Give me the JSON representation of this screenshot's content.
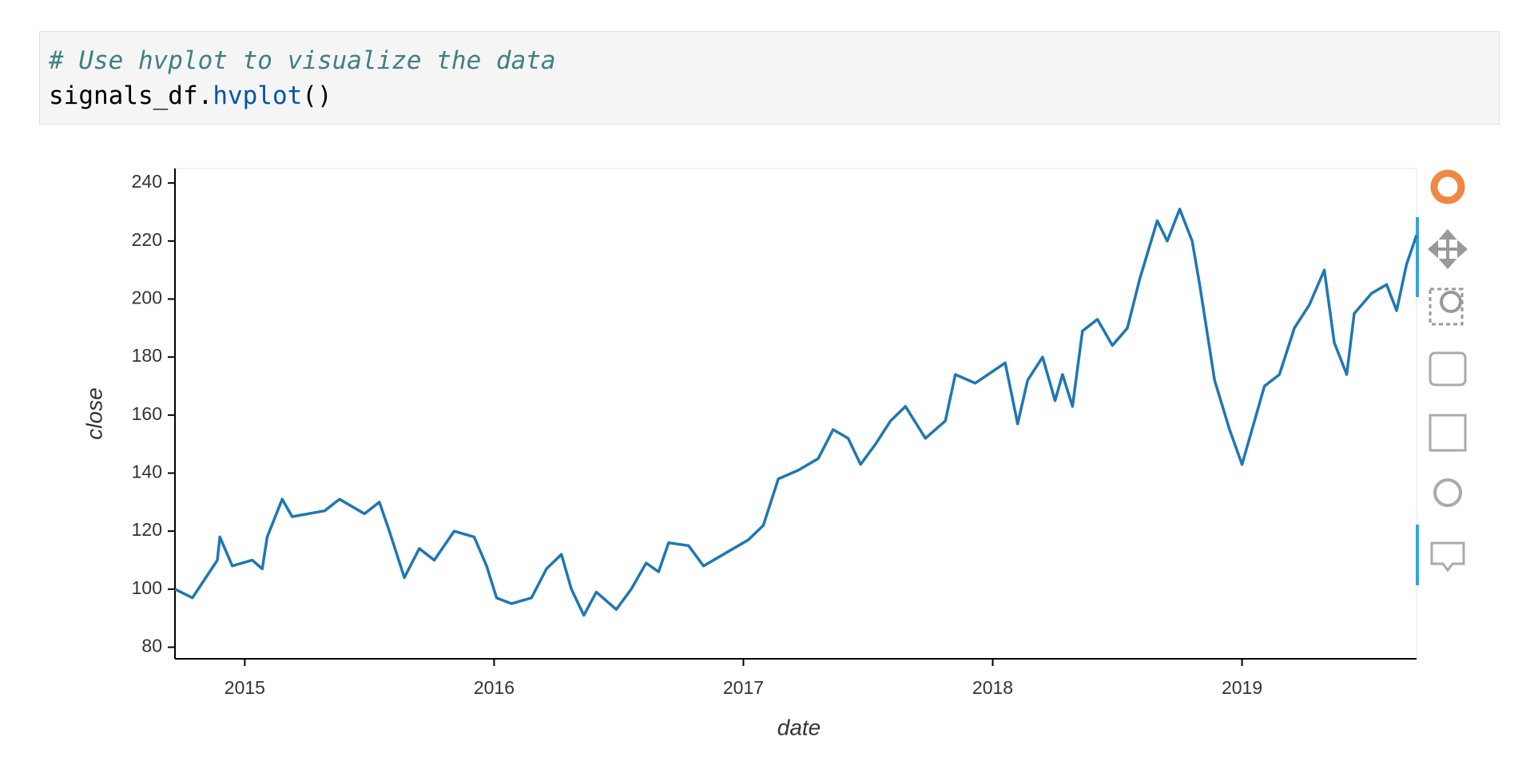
{
  "code_cell": {
    "lines": [
      [
        {
          "text": "# Use hvplot to visualize the data",
          "kind": "comment"
        }
      ],
      [
        {
          "text": "signals_df.",
          "kind": "plain"
        },
        {
          "text": "hvplot",
          "kind": "name"
        },
        {
          "text": "()",
          "kind": "plain"
        }
      ]
    ]
  },
  "chart_data": {
    "type": "line",
    "xlabel": "date",
    "ylabel": "close",
    "x": [
      2014.72,
      2014.79,
      2014.89,
      2014.9,
      2014.95,
      2015.03,
      2015.07,
      2015.09,
      2015.15,
      2015.19,
      2015.32,
      2015.38,
      2015.48,
      2015.54,
      2015.58,
      2015.64,
      2015.7,
      2015.76,
      2015.84,
      2015.92,
      2015.97,
      2016.01,
      2016.07,
      2016.15,
      2016.21,
      2016.27,
      2016.31,
      2016.36,
      2016.41,
      2016.49,
      2016.55,
      2016.61,
      2016.66,
      2016.7,
      2016.78,
      2016.84,
      2016.94,
      2017.02,
      2017.08,
      2017.14,
      2017.22,
      2017.3,
      2017.36,
      2017.42,
      2017.47,
      2017.53,
      2017.59,
      2017.65,
      2017.73,
      2017.81,
      2017.85,
      2017.93,
      2018.05,
      2018.1,
      2018.14,
      2018.2,
      2018.25,
      2018.28,
      2018.32,
      2018.36,
      2018.42,
      2018.48,
      2018.54,
      2018.59,
      2018.66,
      2018.7,
      2018.75,
      2018.8,
      2018.83,
      2018.89,
      2018.95,
      2019.0,
      2019.05,
      2019.09,
      2019.15,
      2019.21,
      2019.27,
      2019.33,
      2019.37,
      2019.42,
      2019.45,
      2019.52,
      2019.58,
      2019.62,
      2019.66,
      2019.7
    ],
    "series": [
      {
        "name": "close",
        "color": "#1f77b4",
        "values": [
          100,
          97,
          110,
          118,
          108,
          110,
          107,
          118,
          131,
          125,
          127,
          131,
          126,
          130,
          120,
          104,
          114,
          110,
          120,
          118,
          108,
          97,
          95,
          97,
          107,
          112,
          100,
          91,
          99,
          93,
          100,
          109,
          106,
          116,
          115,
          108,
          113,
          117,
          122,
          138,
          141,
          145,
          155,
          152,
          143,
          150,
          158,
          163,
          152,
          158,
          174,
          171,
          178,
          157,
          172,
          180,
          165,
          174,
          163,
          189,
          193,
          184,
          190,
          207,
          227,
          220,
          231,
          220,
          205,
          172,
          155,
          143,
          158,
          170,
          174,
          190,
          198,
          210,
          185,
          174,
          195,
          202,
          205,
          196,
          212,
          222
        ]
      }
    ],
    "xlim": [
      2014.72,
      2019.7
    ],
    "xticks": [
      2015,
      2016,
      2017,
      2018,
      2019
    ],
    "ylim": [
      76,
      245
    ],
    "yticks": [
      80,
      100,
      120,
      140,
      160,
      180,
      200,
      220,
      240
    ]
  }
}
